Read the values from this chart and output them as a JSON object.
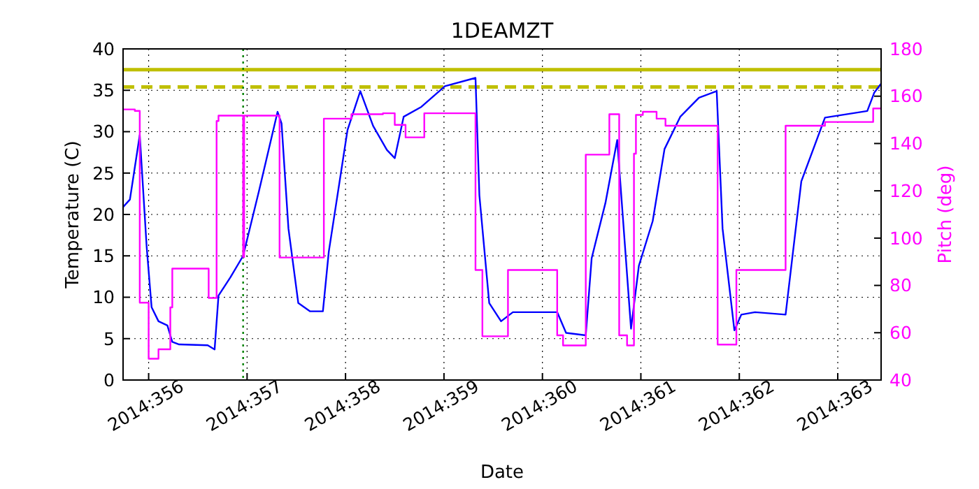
{
  "chart_data": {
    "type": "line",
    "title": "1DEAMZT",
    "xlabel": "Date",
    "ylabel": "Temperature (C)",
    "y2label": "Pitch (deg)",
    "xlim": [
      "2014-12-21T17:46",
      "2014-12-29T10:34"
    ],
    "xticks": [
      {
        "value": "2014-12-22",
        "label": "2014:356"
      },
      {
        "value": "2014-12-23",
        "label": "2014:357"
      },
      {
        "value": "2014-12-24",
        "label": "2014:358"
      },
      {
        "value": "2014-12-25",
        "label": "2014:359"
      },
      {
        "value": "2014-12-26",
        "label": "2014:360"
      },
      {
        "value": "2014-12-27",
        "label": "2014:361"
      },
      {
        "value": "2014-12-28",
        "label": "2014:362"
      },
      {
        "value": "2014-12-29",
        "label": "2014:363"
      }
    ],
    "ylim": [
      0,
      40
    ],
    "yticks": [
      0,
      5,
      10,
      15,
      20,
      25,
      30,
      35,
      40
    ],
    "y2lim": [
      40,
      180
    ],
    "y2ticks": [
      40,
      60,
      80,
      100,
      120,
      140,
      160,
      180
    ],
    "grid": true,
    "line_style": "solid",
    "series": [
      {
        "color": "#0000ff",
        "x": [
          "2014-12-21T17:46",
          "2014-12-21T19:26",
          "2014-12-21T21:50",
          "2014-12-21T23:31",
          "2014-12-22T00:43",
          "2014-12-22T02:24",
          "2014-12-22T04:34",
          "2014-12-22T05:46",
          "2014-12-22T07:26",
          "2014-12-22T14:24",
          "2014-12-22T16:05",
          "2014-12-22T17:02",
          "2014-12-22T19:55",
          "2014-12-22T23:02",
          "2014-12-23T02:53",
          "2014-12-23T07:26",
          "2014-12-23T08:24",
          "2014-12-23T10:05",
          "2014-12-23T12:29",
          "2014-12-23T15:22",
          "2014-12-23T18:29",
          "2014-12-23T19:55",
          "2014-12-24T00:29",
          "2014-12-24T03:36",
          "2014-12-24T06:43",
          "2014-12-24T10:05",
          "2014-12-24T12:00",
          "2014-12-24T14:10",
          "2014-12-24T18:29",
          "2014-12-25T00:14",
          "2014-12-25T07:41",
          "2014-12-25T08:38",
          "2014-12-25T11:02",
          "2014-12-25T13:55",
          "2014-12-25T16:48",
          "2014-12-25T21:22",
          "2014-12-26T03:36",
          "2014-12-26T05:46",
          "2014-12-26T10:34",
          "2014-12-26T12:00",
          "2014-12-26T15:22",
          "2014-12-26T18:14",
          "2014-12-26T21:36",
          "2014-12-26T23:31",
          "2014-12-27T02:53",
          "2014-12-27T05:46",
          "2014-12-27T09:36",
          "2014-12-27T14:10",
          "2014-12-27T18:29",
          "2014-12-27T19:55",
          "2014-12-27T22:48",
          "2014-12-28T00:29",
          "2014-12-28T03:50",
          "2014-12-28T11:17",
          "2014-12-28T15:07",
          "2014-12-28T20:53",
          "2014-12-29T07:12",
          "2014-12-29T08:53",
          "2014-12-29T10:34"
        ],
        "values": [
          20.9,
          21.8,
          29.6,
          16.1,
          8.8,
          7.1,
          6.6,
          4.6,
          4.3,
          4.2,
          3.7,
          10.2,
          12.4,
          15.0,
          22.8,
          32.4,
          31.0,
          18.3,
          9.3,
          8.3,
          8.3,
          15.5,
          30.2,
          34.9,
          30.7,
          27.8,
          26.8,
          31.8,
          33.0,
          35.5,
          36.5,
          22.3,
          9.3,
          7.1,
          8.2,
          8.2,
          8.2,
          5.7,
          5.4,
          14.7,
          21.4,
          29.0,
          6.2,
          13.8,
          19.2,
          27.9,
          31.8,
          34.1,
          34.9,
          18.3,
          6.0,
          7.9,
          8.2,
          7.9,
          24.0,
          31.7,
          32.5,
          34.7,
          35.8
        ]
      },
      {
        "type": "step",
        "axis": "y2",
        "color": "#ff00ff",
        "x": [
          "2014-12-21T17:46",
          "2014-12-21T20:38",
          "2014-12-21T21:50",
          "2014-12-22T00:00",
          "2014-12-22T02:24",
          "2014-12-22T05:17",
          "2014-12-22T05:46",
          "2014-12-22T14:38",
          "2014-12-22T16:34",
          "2014-12-22T17:02",
          "2014-12-22T23:02",
          "2014-12-22T23:17",
          "2014-12-23T07:55",
          "2014-12-23T18:43",
          "2014-12-24T01:26",
          "2014-12-24T09:07",
          "2014-12-24T12:00",
          "2014-12-24T14:38",
          "2014-12-24T19:12",
          "2014-12-25T07:41",
          "2014-12-25T09:22",
          "2014-12-25T15:36",
          "2014-12-26T03:36",
          "2014-12-26T05:02",
          "2014-12-26T10:34",
          "2014-12-26T16:19",
          "2014-12-26T18:43",
          "2014-12-26T20:38",
          "2014-12-26T22:19",
          "2014-12-26T22:48",
          "2014-12-27T00:29",
          "2014-12-27T03:50",
          "2014-12-27T06:00",
          "2014-12-27T18:43",
          "2014-12-27T23:17",
          "2014-12-28T11:17",
          "2014-12-28T20:53",
          "2014-12-29T08:38",
          "2014-12-29T10:34"
        ],
        "values": [
          154.4,
          153.8,
          72.7,
          49.0,
          53.0,
          70.7,
          87.1,
          74.7,
          149.5,
          151.8,
          92,
          151.8,
          91.8,
          150.5,
          152.4,
          152.8,
          147.9,
          142.6,
          152.8,
          86.5,
          58.5,
          86.5,
          58.9,
          54.6,
          135.3,
          152.4,
          58.9,
          54.6,
          135.7,
          152.1,
          153.4,
          150.5,
          147.5,
          55.0,
          86.5,
          147.5,
          149.1,
          154.8,
          154.8
        ]
      }
    ],
    "ref_lines": [
      {
        "axis": "y",
        "value": 37.5,
        "color": "#bfbf00",
        "line_style": "solid"
      },
      {
        "axis": "y",
        "value": 35.4,
        "color": "#bfbf00",
        "line_style": "dashed"
      },
      {
        "axis": "x",
        "value": "2014-12-22T23:02",
        "color": "#008000",
        "line_style": "dotted"
      }
    ]
  }
}
